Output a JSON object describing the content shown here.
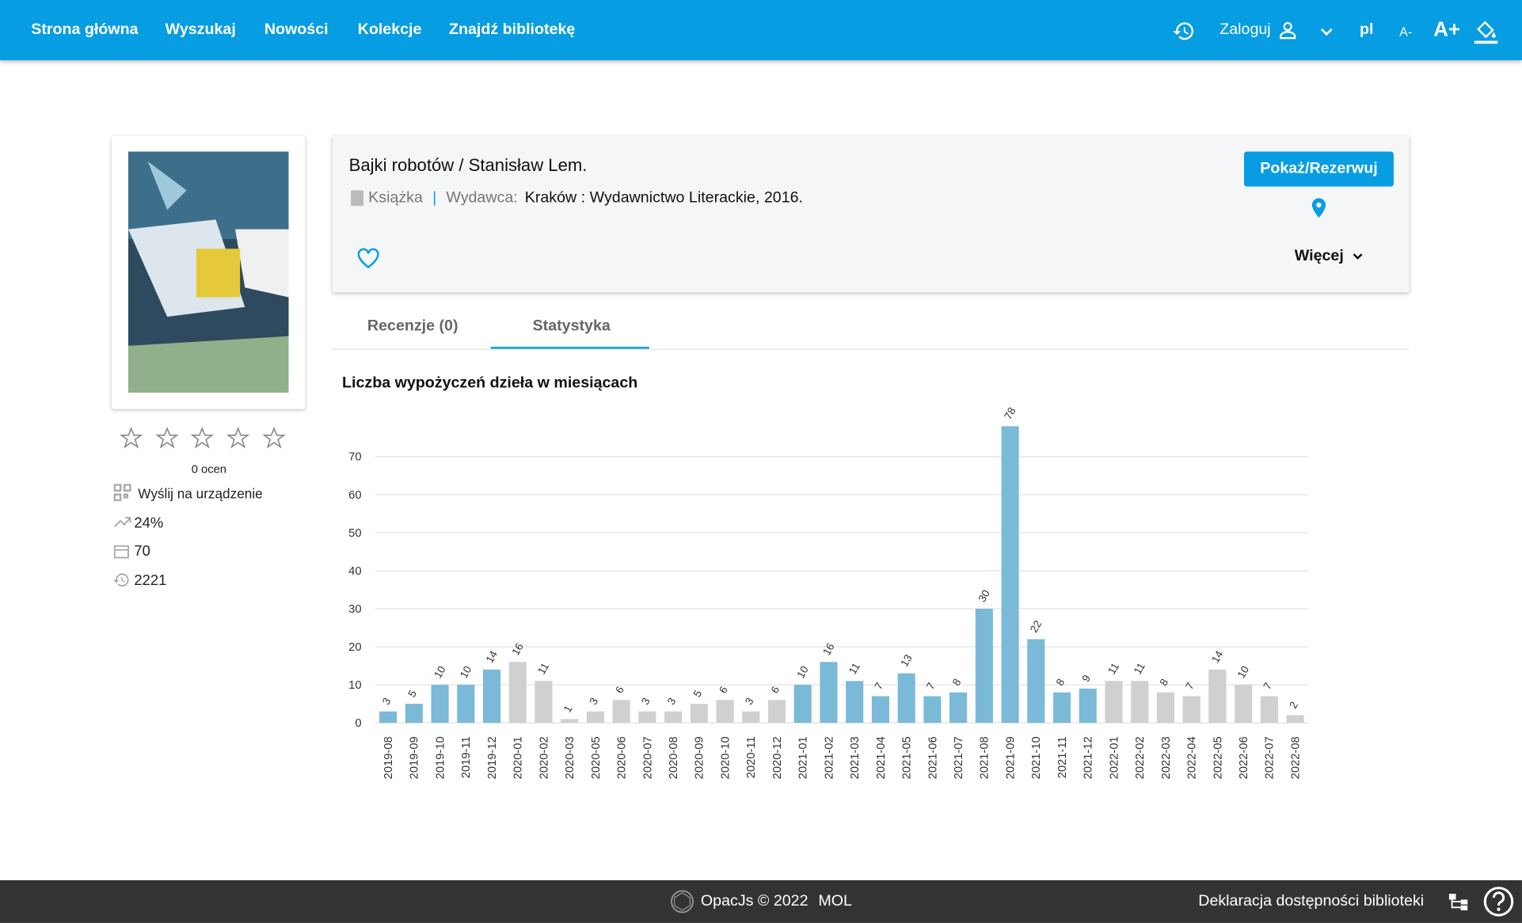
{
  "nav": {
    "items": [
      "Strona główna",
      "Wyszukaj",
      "Nowości",
      "Kolekcje",
      "Znajdź bibliotekę"
    ],
    "login": "Zaloguj",
    "language": "pl",
    "font_smaller": "A-",
    "font_larger": "A+"
  },
  "book": {
    "title": "Bajki robotów / Stanisław Lem.",
    "format": "Książka",
    "separator": "|",
    "publisher_label": "Wydawca:",
    "publisher": "Kraków : Wydawnictwo Literackie, 2016.",
    "button": "Pokaż/Rezerwuj",
    "more": "Więcej"
  },
  "sidebar": {
    "ratings": "0 ocen",
    "send": "Wyślij na urządzenie",
    "trend": "24%",
    "days": "70",
    "views": "2221"
  },
  "tabs": [
    "Recenzje (0)",
    "Statystyka"
  ],
  "chart_data": {
    "type": "bar",
    "title": "Liczba wypożyczeń dzieła w miesiącach",
    "categories": [
      "2019-08",
      "2019-09",
      "2019-10",
      "2019-11",
      "2019-12",
      "2020-01",
      "2020-02",
      "2020-03",
      "2020-05",
      "2020-06",
      "2020-07",
      "2020-08",
      "2020-09",
      "2020-10",
      "2020-11",
      "2020-12",
      "2021-01",
      "2021-02",
      "2021-03",
      "2021-04",
      "2021-05",
      "2021-06",
      "2021-07",
      "2021-08",
      "2021-09",
      "2021-10",
      "2021-11",
      "2021-12",
      "2022-01",
      "2022-02",
      "2022-03",
      "2022-04",
      "2022-05",
      "2022-06",
      "2022-07",
      "2022-08"
    ],
    "values": [
      3,
      5,
      10,
      10,
      14,
      16,
      11,
      1,
      3,
      6,
      3,
      3,
      5,
      6,
      3,
      6,
      10,
      16,
      11,
      7,
      13,
      7,
      8,
      30,
      78,
      22,
      8,
      9,
      11,
      11,
      8,
      7,
      14,
      10,
      7,
      2
    ],
    "colors": [
      "#7ab9d8",
      "#7ab9d8",
      "#7ab9d8",
      "#7ab9d8",
      "#7ab9d8",
      "#d0d0d0",
      "#d0d0d0",
      "#d0d0d0",
      "#d0d0d0",
      "#d0d0d0",
      "#d0d0d0",
      "#d0d0d0",
      "#d0d0d0",
      "#d0d0d0",
      "#d0d0d0",
      "#d0d0d0",
      "#7ab9d8",
      "#7ab9d8",
      "#7ab9d8",
      "#7ab9d8",
      "#7ab9d8",
      "#7ab9d8",
      "#7ab9d8",
      "#7ab9d8",
      "#7ab9d8",
      "#7ab9d8",
      "#7ab9d8",
      "#7ab9d8",
      "#d0d0d0",
      "#d0d0d0",
      "#d0d0d0",
      "#d0d0d0",
      "#d0d0d0",
      "#d0d0d0",
      "#d0d0d0",
      "#d0d0d0"
    ],
    "ylim": [
      0,
      78
    ],
    "yticks": [
      0,
      10,
      20,
      30,
      40,
      50,
      60,
      70
    ],
    "grid": true
  },
  "footer": {
    "product": "OpacJs © 2022",
    "org": "MOL",
    "accessibility": "Deklaracja dostępności biblioteki"
  }
}
